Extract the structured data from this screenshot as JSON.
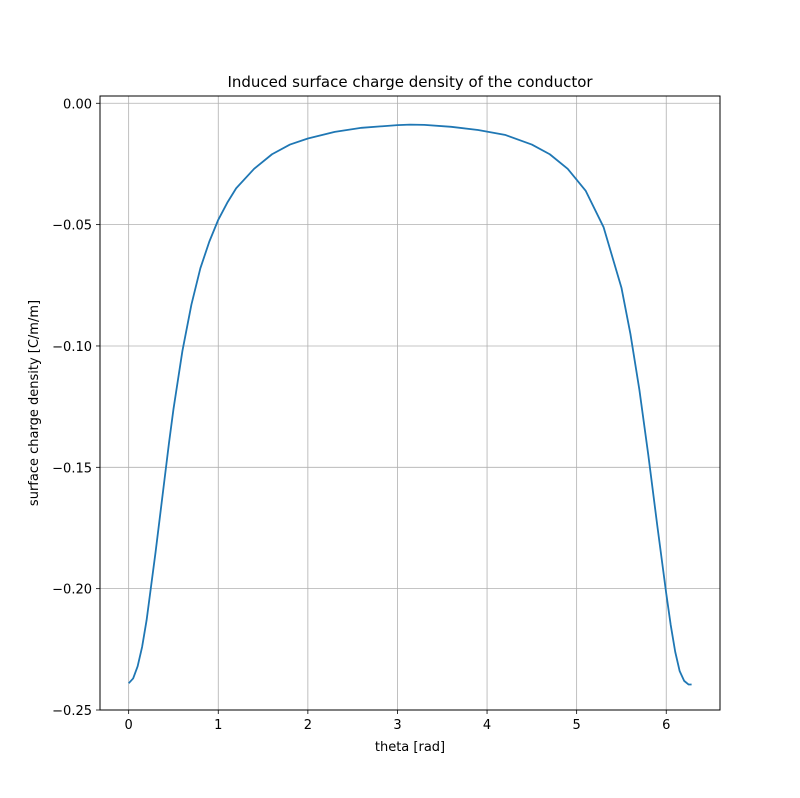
{
  "chart_data": {
    "type": "line",
    "title": "Induced surface charge density of the conductor",
    "xlabel": "theta [rad]",
    "ylabel": "surface charge density [C/m/m]",
    "xlim": [
      -0.32,
      6.6
    ],
    "ylim": [
      -0.25,
      0.003
    ],
    "xticks": [
      0,
      1,
      2,
      3,
      4,
      5,
      6
    ],
    "xtick_labels": [
      "0",
      "1",
      "2",
      "3",
      "4",
      "5",
      "6"
    ],
    "yticks": [
      0.0,
      -0.05,
      -0.1,
      -0.15,
      -0.2,
      -0.25
    ],
    "ytick_labels": [
      "0.00",
      "−0.05",
      "−0.10",
      "−0.15",
      "−0.20",
      "−0.25"
    ],
    "grid": true,
    "legend": false,
    "line_color": "#1f77b4",
    "series": [
      {
        "x": [
          0.0,
          0.05,
          0.1,
          0.15,
          0.2,
          0.25,
          0.3,
          0.35,
          0.4,
          0.45,
          0.5,
          0.6,
          0.7,
          0.8,
          0.9,
          1.0,
          1.1,
          1.2,
          1.4,
          1.6,
          1.8,
          2.0,
          2.3,
          2.6,
          3.0,
          3.14,
          3.3,
          3.6,
          3.9,
          4.2,
          4.5,
          4.7,
          4.9,
          5.1,
          5.3,
          5.5,
          5.6,
          5.7,
          5.8,
          5.9,
          6.0,
          6.05,
          6.1,
          6.15,
          6.2,
          6.25,
          6.283
        ],
        "values": [
          -0.239,
          -0.237,
          -0.232,
          -0.224,
          -0.213,
          -0.199,
          -0.185,
          -0.17,
          -0.155,
          -0.14,
          -0.126,
          -0.102,
          -0.083,
          -0.068,
          -0.057,
          -0.048,
          -0.041,
          -0.035,
          -0.027,
          -0.021,
          -0.017,
          -0.0145,
          -0.0118,
          -0.0101,
          -0.009,
          -0.0088,
          -0.0089,
          -0.0097,
          -0.011,
          -0.013,
          -0.017,
          -0.021,
          -0.027,
          -0.036,
          -0.051,
          -0.076,
          -0.095,
          -0.118,
          -0.145,
          -0.174,
          -0.202,
          -0.215,
          -0.226,
          -0.234,
          -0.238,
          -0.2395,
          -0.2395
        ]
      }
    ]
  }
}
